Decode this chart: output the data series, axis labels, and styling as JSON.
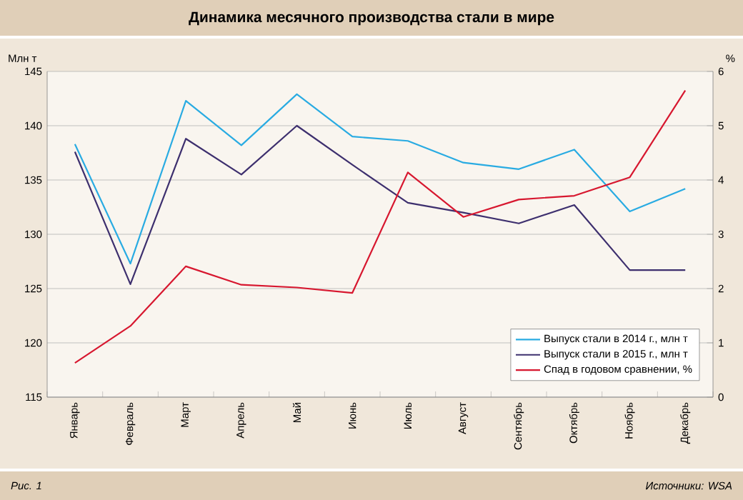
{
  "chart_data": {
    "type": "line",
    "title": "Динамика месячного производства стали в мире",
    "categories": [
      "Январь",
      "Февраль",
      "Март",
      "Апрель",
      "Май",
      "Июнь",
      "Июль",
      "Август",
      "Сентябрь",
      "Октябрь",
      "Ноябрь",
      "Декабрь"
    ],
    "series": [
      {
        "name": "Выпуск стали в 2014 г., млн т",
        "color": "#29abe2",
        "values": [
          138.3,
          127.3,
          142.3,
          138.2,
          142.9,
          139.0,
          138.6,
          136.6,
          136.0,
          137.8,
          132.1,
          134.2
        ]
      },
      {
        "name": "Выпуск стали в 2015 г., млн т",
        "color": "#3d2f6e",
        "values": [
          137.6,
          125.4,
          138.8,
          135.5,
          140.0,
          136.4,
          132.9,
          132.0,
          131.0,
          132.7,
          126.7,
          126.7
        ]
      },
      {
        "name": "Спад в годовом сравнении, %",
        "color": "#d7172f",
        "axis": "y2",
        "values": [
          0.63,
          1.31,
          2.41,
          2.07,
          2.02,
          1.92,
          4.14,
          3.32,
          3.64,
          3.71,
          4.05,
          5.65
        ]
      }
    ],
    "ylabel": "Млн т",
    "y2label": "%",
    "ylim": [
      115,
      145
    ],
    "yticks": [
      115,
      120,
      125,
      130,
      135,
      140,
      145
    ],
    "y2lim": [
      0,
      6
    ],
    "y2ticks": [
      0,
      1,
      2,
      3,
      4,
      5,
      6
    ],
    "grid": "y",
    "legend": "bottom right",
    "annotations": [
      "Рис. 1",
      "Источники: WSA"
    ]
  }
}
